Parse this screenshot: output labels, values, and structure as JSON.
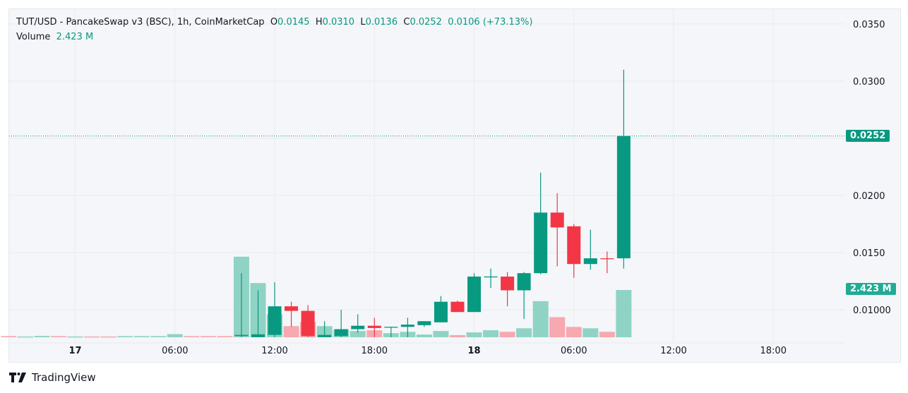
{
  "legend": {
    "symbol": "TUT/USD - PancakeSwap v3 (BSC), 1h, CoinMarketCap",
    "open_label": "O",
    "open": "0.0145",
    "high_label": "H",
    "high": "0.0310",
    "low_label": "L",
    "low": "0.0136",
    "close_label": "C",
    "close": "0.0252",
    "change": "0.0106 (+73.13%)",
    "volume_label": "Volume",
    "volume": "2.423 M"
  },
  "branding": {
    "name": "TradingView"
  },
  "colors": {
    "up": "#089981",
    "down": "#f23645",
    "up_volume": "#8fd3c4",
    "down_volume": "#f7a8b0"
  },
  "chart_data": {
    "type": "candlestick",
    "interval": "1h",
    "price_ticks": [
      "0.0350",
      "0.0300",
      "0.0200",
      "0.0150",
      "0.01000"
    ],
    "price_tick_values": [
      0.035,
      0.03,
      0.02,
      0.015,
      0.01
    ],
    "ylim": [
      0.0076,
      0.0364
    ],
    "time_ticks": [
      {
        "label": "17",
        "index": 4,
        "bold": true
      },
      {
        "label": "06:00",
        "index": 10
      },
      {
        "label": "12:00",
        "index": 16
      },
      {
        "label": "18:00",
        "index": 22
      },
      {
        "label": "18",
        "index": 28,
        "bold": true
      },
      {
        "label": "06:00",
        "index": 34
      },
      {
        "label": "12:00",
        "index": 40
      },
      {
        "label": "18:00",
        "index": 46
      }
    ],
    "last_price_label": "0.0252",
    "last_price": 0.0252,
    "last_volume_label": "2.423 M",
    "volume_max": 4.13,
    "candles_columns": [
      "time",
      "open",
      "high",
      "low",
      "close",
      "volume_M"
    ],
    "candles": [
      [
        "16 20:00",
        0.0077,
        0.0077,
        0.0077,
        0.0077,
        0.06,
        "down"
      ],
      [
        "16 21:00",
        0.0077,
        0.0077,
        0.0077,
        0.0077,
        0.04,
        "up"
      ],
      [
        "16 22:00",
        0.0077,
        0.0077,
        0.0077,
        0.0077,
        0.07,
        "up"
      ],
      [
        "16 23:00",
        0.0077,
        0.0077,
        0.0077,
        0.0077,
        0.06,
        "down"
      ],
      [
        "17 00:00",
        0.0077,
        0.0077,
        0.0077,
        0.0077,
        0.04,
        "up"
      ],
      [
        "17 01:00",
        0.0077,
        0.0077,
        0.0077,
        0.0077,
        0.04,
        "down"
      ],
      [
        "17 02:00",
        0.0077,
        0.0077,
        0.0077,
        0.0077,
        0.04,
        "down"
      ],
      [
        "17 03:00",
        0.0077,
        0.0077,
        0.0077,
        0.0077,
        0.06,
        "up"
      ],
      [
        "17 04:00",
        0.0077,
        0.0077,
        0.0077,
        0.0077,
        0.06,
        "up"
      ],
      [
        "17 05:00",
        0.0077,
        0.0077,
        0.0077,
        0.0077,
        0.06,
        "up"
      ],
      [
        "17 06:00",
        0.0077,
        0.0077,
        0.0077,
        0.0077,
        0.16,
        "up"
      ],
      [
        "17 07:00",
        0.0077,
        0.0077,
        0.0077,
        0.0077,
        0.06,
        "down"
      ],
      [
        "17 08:00",
        0.0077,
        0.0077,
        0.0077,
        0.0077,
        0.06,
        "down"
      ],
      [
        "17 09:00",
        0.0077,
        0.0077,
        0.0077,
        0.0077,
        0.06,
        "down"
      ],
      [
        "17 10:00",
        0.0077,
        0.0132,
        0.0076,
        0.0078,
        4.13
      ],
      [
        "17 11:00",
        0.0076,
        0.0117,
        0.0076,
        0.00785,
        2.78
      ],
      [
        "17 12:00",
        0.0078,
        0.0124,
        0.0076,
        0.0103,
        1.18
      ],
      [
        "17 13:00",
        0.0103,
        0.0107,
        0.0085,
        0.0099,
        0.57
      ],
      [
        "17 14:00",
        0.0099,
        0.0104,
        0.0076,
        0.0077,
        0.78
      ],
      [
        "17 15:00",
        0.0076,
        0.009,
        0.0076,
        0.0078,
        0.57
      ],
      [
        "17 16:00",
        0.0077,
        0.01,
        0.0076,
        0.0083,
        0.39
      ],
      [
        "17 17:00",
        0.0083,
        0.0096,
        0.008,
        0.0086,
        0.32
      ],
      [
        "17 18:00",
        0.0086,
        0.0093,
        0.0076,
        0.0084,
        0.36
      ],
      [
        "17 19:00",
        0.0085,
        0.0085,
        0.0076,
        0.00851,
        0.21
      ],
      [
        "17 20:00",
        0.0085,
        0.0093,
        0.0076,
        0.0087,
        0.28
      ],
      [
        "17 21:00",
        0.00865,
        0.009,
        0.0085,
        0.009,
        0.14
      ],
      [
        "17 22:00",
        0.0089,
        0.0112,
        0.0089,
        0.0107,
        0.32
      ],
      [
        "17 23:00",
        0.0107,
        0.0108,
        0.0098,
        0.0098,
        0.11
      ],
      [
        "18 00:00",
        0.0098,
        0.0132,
        0.0098,
        0.0129,
        0.25
      ],
      [
        "18 01:00",
        0.0129,
        0.0136,
        0.0119,
        0.01291,
        0.36
      ],
      [
        "18 02:00",
        0.0129,
        0.0133,
        0.0103,
        0.0117,
        0.28
      ],
      [
        "18 03:00",
        0.0117,
        0.0133,
        0.0092,
        0.0132,
        0.46
      ],
      [
        "18 04:00",
        0.0132,
        0.022,
        0.0131,
        0.0185,
        1.85
      ],
      [
        "18 05:00",
        0.0185,
        0.0202,
        0.0138,
        0.0172,
        1.03
      ],
      [
        "18 06:00",
        0.0173,
        0.0175,
        0.0128,
        0.014,
        0.53
      ],
      [
        "18 07:00",
        0.014,
        0.017,
        0.0135,
        0.0145,
        0.46
      ],
      [
        "18 08:00",
        0.0145,
        0.0151,
        0.0132,
        0.0145,
        0.28,
        "down"
      ],
      [
        "18 09:00",
        0.0145,
        0.031,
        0.0136,
        0.0252,
        2.423
      ]
    ]
  }
}
